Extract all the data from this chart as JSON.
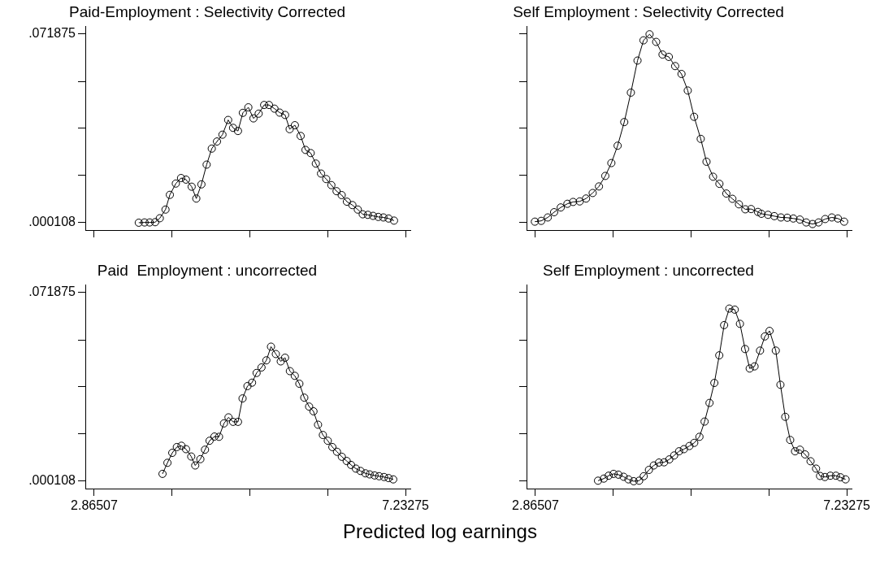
{
  "chart_data": [
    {
      "type": "line",
      "title": "Paid-Employment : Selectivity Corrected",
      "tick_labels": "y",
      "grid": false,
      "legend": false,
      "marker": "circle",
      "color": "#000000",
      "xlim": [
        2.74,
        7.3
      ],
      "xticks": [
        {
          "value": 2.86507,
          "label": null
        },
        {
          "value": 3.95699,
          "label": null
        },
        {
          "value": 5.04891,
          "label": null
        },
        {
          "value": 6.14083,
          "label": null
        },
        {
          "value": 7.23275,
          "label": null
        }
      ],
      "ylim": [
        -0.0027,
        0.0747
      ],
      "yticks": [
        {
          "value": 0.000108,
          "label": ".000108"
        },
        {
          "value": 0.0181,
          "label": null
        },
        {
          "value": 0.036,
          "label": null
        },
        {
          "value": 0.0539,
          "label": null
        },
        {
          "value": 0.071875,
          "label": ".071875"
        }
      ],
      "x": [
        3.49,
        3.571,
        3.643,
        3.72,
        3.785,
        3.865,
        3.926,
        4.01,
        4.083,
        4.152,
        4.232,
        4.297,
        4.369,
        4.442,
        4.514,
        4.587,
        4.664,
        4.744,
        4.813,
        4.882,
        4.95,
        5.027,
        5.099,
        5.172,
        5.249,
        5.317,
        5.394,
        5.466,
        5.543,
        5.607,
        5.68,
        5.761,
        5.829,
        5.902,
        5.974,
        6.047,
        6.12,
        6.192,
        6.265,
        6.337,
        6.41,
        6.487,
        6.563,
        6.632,
        6.704,
        6.777,
        6.85,
        6.922,
        6.995,
        7.071
      ],
      "values": [
        0.0001,
        0.0002,
        0.0002,
        0.0003,
        0.0018,
        0.0051,
        0.0107,
        0.015,
        0.0171,
        0.0165,
        0.0138,
        0.0093,
        0.0147,
        0.0222,
        0.0283,
        0.031,
        0.0336,
        0.0392,
        0.0362,
        0.035,
        0.0419,
        0.044,
        0.0398,
        0.0416,
        0.0449,
        0.0449,
        0.0435,
        0.042,
        0.0411,
        0.0357,
        0.0372,
        0.0331,
        0.0278,
        0.0266,
        0.0226,
        0.0188,
        0.0167,
        0.0144,
        0.0121,
        0.0106,
        0.0081,
        0.0068,
        0.0051,
        0.0033,
        0.0031,
        0.0027,
        0.0023,
        0.0021,
        0.0017,
        0.0009
      ]
    },
    {
      "type": "line",
      "title": "Self Employment : Selectivity Corrected",
      "tick_labels": false,
      "grid": false,
      "legend": false,
      "marker": "circle",
      "color": "#000000",
      "xlim": [
        2.74,
        7.3
      ],
      "xticks": [
        {
          "value": 2.86507,
          "label": null
        },
        {
          "value": 3.95699,
          "label": null
        },
        {
          "value": 5.04891,
          "label": null
        },
        {
          "value": 6.14083,
          "label": null
        },
        {
          "value": 7.23275,
          "label": null
        }
      ],
      "ylim": [
        -0.0027,
        0.0747
      ],
      "yticks": [
        {
          "value": 0.000108,
          "label": null
        },
        {
          "value": 0.0181,
          "label": null
        },
        {
          "value": 0.036,
          "label": null
        },
        {
          "value": 0.0539,
          "label": null
        },
        {
          "value": 0.071875,
          "label": null
        }
      ],
      "x": [
        2.857,
        2.946,
        3.038,
        3.127,
        3.22,
        3.313,
        3.393,
        3.486,
        3.575,
        3.668,
        3.756,
        3.845,
        3.93,
        4.018,
        4.111,
        4.204,
        4.297,
        4.381,
        4.466,
        4.559,
        4.648,
        4.736,
        4.825,
        4.914,
        5.002,
        5.091,
        5.184,
        5.265,
        5.357,
        5.446,
        5.543,
        5.628,
        5.72,
        5.809,
        5.89,
        5.987,
        6.035,
        6.128,
        6.216,
        6.309,
        6.398,
        6.483,
        6.575,
        6.664,
        6.753,
        6.837,
        6.93,
        7.023,
        7.108,
        7.196
      ],
      "values": [
        0.0005,
        0.0008,
        0.0021,
        0.0041,
        0.0059,
        0.0073,
        0.008,
        0.0082,
        0.0093,
        0.0114,
        0.0139,
        0.0179,
        0.0228,
        0.0294,
        0.0384,
        0.0496,
        0.0618,
        0.0695,
        0.0718,
        0.0689,
        0.0641,
        0.0632,
        0.0597,
        0.0567,
        0.0504,
        0.0404,
        0.032,
        0.0233,
        0.0176,
        0.0149,
        0.0112,
        0.0092,
        0.0071,
        0.0052,
        0.0053,
        0.0042,
        0.0035,
        0.0031,
        0.0026,
        0.0021,
        0.002,
        0.0017,
        0.0013,
        0.0002,
        -0.0004,
        0.0002,
        0.0015,
        0.0021,
        0.0017,
        0.0005
      ]
    },
    {
      "type": "line",
      "title": "Paid  Employment : uncorrected",
      "xlabel": "Predicted log earnings",
      "grid": false,
      "legend": false,
      "marker": "circle",
      "color": "#000000",
      "xlim": [
        2.74,
        7.3
      ],
      "xticks": [
        {
          "value": 2.86507,
          "label": "2.86507"
        },
        {
          "value": 3.95699,
          "label": null
        },
        {
          "value": 5.04891,
          "label": null
        },
        {
          "value": 6.14083,
          "label": null
        },
        {
          "value": 7.23275,
          "label": "7.23275"
        }
      ],
      "ylim": [
        -0.0027,
        0.0747
      ],
      "yticks": [
        {
          "value": 0.000108,
          "label": ".000108"
        },
        {
          "value": 0.0181,
          "label": null
        },
        {
          "value": 0.036,
          "label": null
        },
        {
          "value": 0.0539,
          "label": null
        },
        {
          "value": 0.071875,
          "label": ".071875"
        }
      ],
      "x": [
        3.823,
        3.892,
        3.96,
        4.024,
        4.089,
        4.153,
        4.226,
        4.282,
        4.354,
        4.419,
        4.483,
        4.552,
        4.616,
        4.685,
        4.749,
        4.813,
        4.882,
        4.946,
        5.015,
        5.079,
        5.143,
        5.212,
        5.28,
        5.345,
        5.413,
        5.482,
        5.542,
        5.61,
        5.679,
        5.743,
        5.812,
        5.88,
        5.941,
        6.005,
        6.073,
        6.142,
        6.206,
        6.271,
        6.339,
        6.407,
        6.468,
        6.536,
        6.601,
        6.669,
        6.729,
        6.798,
        6.862,
        6.931,
        6.995,
        7.06
      ],
      "values": [
        0.0029,
        0.0071,
        0.0109,
        0.0131,
        0.0136,
        0.0123,
        0.0095,
        0.0061,
        0.0085,
        0.0121,
        0.0155,
        0.0171,
        0.017,
        0.0221,
        0.0244,
        0.0227,
        0.0227,
        0.0316,
        0.0363,
        0.0376,
        0.0413,
        0.0434,
        0.0461,
        0.0513,
        0.0485,
        0.0457,
        0.0471,
        0.042,
        0.0402,
        0.0372,
        0.0319,
        0.0285,
        0.0267,
        0.0216,
        0.0177,
        0.0155,
        0.0131,
        0.0113,
        0.0094,
        0.0078,
        0.0063,
        0.0049,
        0.004,
        0.0031,
        0.0027,
        0.0023,
        0.002,
        0.0017,
        0.0013,
        0.0008
      ]
    },
    {
      "type": "line",
      "title": "Self Employment : uncorrected",
      "tick_labels": "x",
      "grid": false,
      "legend": false,
      "marker": "circle",
      "color": "#000000",
      "xlim": [
        2.74,
        7.3
      ],
      "xticks": [
        {
          "value": 2.86507,
          "label": "2.86507"
        },
        {
          "value": 3.95699,
          "label": null
        },
        {
          "value": 5.04891,
          "label": null
        },
        {
          "value": 6.14083,
          "label": null
        },
        {
          "value": 7.23275,
          "label": "7.23275"
        }
      ],
      "ylim": [
        -0.0027,
        0.0747
      ],
      "yticks": [
        {
          "value": 0.000108,
          "label": null
        },
        {
          "value": 0.0181,
          "label": null
        },
        {
          "value": 0.036,
          "label": null
        },
        {
          "value": 0.0539,
          "label": null
        },
        {
          "value": 0.071875,
          "label": null
        }
      ],
      "x": [
        3.743,
        3.824,
        3.892,
        3.961,
        4.029,
        4.102,
        4.17,
        4.243,
        4.32,
        4.384,
        4.457,
        4.525,
        4.598,
        4.67,
        4.743,
        4.811,
        4.88,
        4.948,
        5.025,
        5.093,
        5.166,
        5.238,
        5.307,
        5.375,
        5.444,
        5.512,
        5.585,
        5.661,
        5.734,
        5.806,
        5.871,
        5.939,
        6.016,
        6.084,
        6.149,
        6.237,
        6.302,
        6.37,
        6.439,
        6.507,
        6.576,
        6.648,
        6.725,
        6.802,
        6.858,
        6.926,
        7.003,
        7.08,
        7.144,
        7.216
      ],
      "values": [
        0.0003,
        0.0011,
        0.0022,
        0.0029,
        0.0026,
        0.0018,
        0.0008,
        0.0001,
        0.0003,
        0.002,
        0.0044,
        0.0061,
        0.0072,
        0.0073,
        0.0084,
        0.0099,
        0.0115,
        0.0123,
        0.0135,
        0.0147,
        0.017,
        0.0228,
        0.0299,
        0.0375,
        0.048,
        0.0595,
        0.0658,
        0.0654,
        0.06,
        0.0504,
        0.043,
        0.0438,
        0.0498,
        0.0552,
        0.0573,
        0.0498,
        0.0368,
        0.0246,
        0.0158,
        0.0115,
        0.0121,
        0.0103,
        0.0077,
        0.0049,
        0.0021,
        0.0017,
        0.0022,
        0.0022,
        0.0016,
        0.0008
      ]
    }
  ]
}
